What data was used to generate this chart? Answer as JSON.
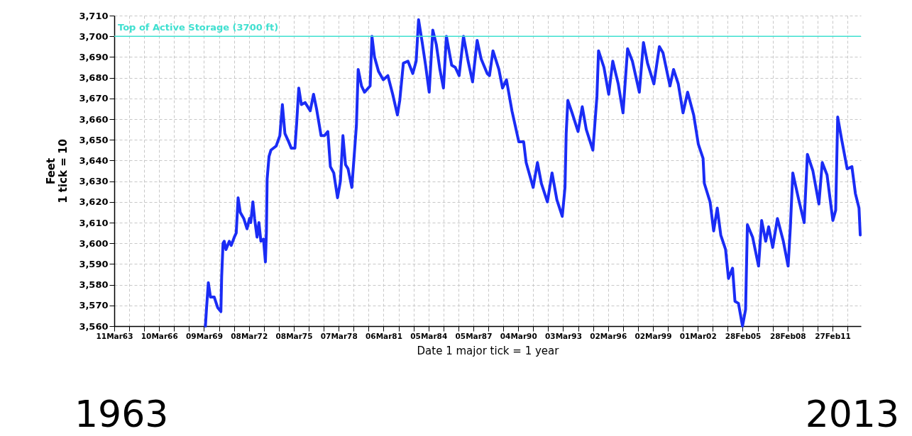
{
  "chart_data": {
    "type": "line",
    "xlabel": "Date  1 major tick = 1 year",
    "ylabel": "Feet\n1 tick = 10",
    "x": [
      "1969-04-11",
      "1969-05-10",
      "1969-06-22",
      "1969-08-13",
      "1969-11-13",
      "1970-02-03",
      "1970-04-24",
      "1970-05-13",
      "1970-06-15",
      "1970-07-14",
      "1970-08-26",
      "1970-11-16",
      "1971-01-01",
      "1971-03-18",
      "1971-05-03",
      "1971-06-18",
      "1971-08-09",
      "1971-11-03",
      "1972-01-21",
      "1972-03-22",
      "1972-04-21",
      "1972-06-12",
      "1972-07-24",
      "1972-09-22",
      "1972-11-06",
      "1972-12-25",
      "1973-02-26",
      "1973-04-14",
      "1973-05-09",
      "1973-05-26",
      "1973-07-11",
      "1973-08-26",
      "1974-01-01",
      "1974-04-01",
      "1974-06-02",
      "1974-08-03",
      "1974-11-03",
      "1975-01-04",
      "1975-04-04",
      "1975-05-16",
      "1975-07-07",
      "1975-09-08",
      "1975-12-08",
      "1976-04-11",
      "1976-07-01",
      "1976-09-12",
      "1977-01-01",
      "1977-03-25",
      "1977-06-15",
      "1977-08-16",
      "1977-11-06",
      "1978-02-06",
      "1978-04-17",
      "1978-06-18",
      "1978-08-20",
      "1978-10-21",
      "1979-01-21",
      "1979-03-22",
      "1979-05-13",
      "1979-06-25",
      "1979-09-15",
      "1979-11-26",
      "1980-04-11",
      "1980-05-26",
      "1980-07-27",
      "1980-11-03",
      "1981-02-26",
      "1981-06-18",
      "1981-10-14",
      "1982-02-06",
      "1982-04-04",
      "1982-07-01",
      "1982-10-21",
      "1983-02-16",
      "1983-05-09",
      "1983-07-07",
      "1983-10-04",
      "1983-12-25",
      "1984-03-22",
      "1984-06-18",
      "1984-09-12",
      "1984-12-08",
      "1985-03-05",
      "1985-05-16",
      "1985-09-22",
      "1985-12-18",
      "1986-03-22",
      "1986-07-07",
      "1986-10-27",
      "1987-02-13",
      "1987-06-05",
      "1987-09-12",
      "1988-02-06",
      "1988-04-01",
      "1988-06-25",
      "1988-11-16",
      "1989-02-13",
      "1989-05-20",
      "1989-10-01",
      "1990-03-18",
      "1990-07-14",
      "1990-09-12",
      "1991-03-02",
      "1991-06-15",
      "1991-09-18",
      "1992-02-13",
      "1992-06-05",
      "1992-10-01",
      "1993-02-09",
      "1993-04-17",
      "1993-05-16",
      "1993-06-25",
      "1993-10-07",
      "1994-03-02",
      "1994-06-12",
      "1994-09-18",
      "1995-02-26",
      "1995-06-05",
      "1995-07-14",
      "1995-11-23",
      "1996-03-18",
      "1996-06-25",
      "1996-11-06",
      "1997-03-02",
      "1997-06-22",
      "1997-10-17",
      "1998-04-04",
      "1998-07-14",
      "1998-10-21",
      "1999-03-25",
      "1999-08-06",
      "1999-11-03",
      "2000-04-21",
      "2000-07-17",
      "2000-11-09",
      "2001-03-05",
      "2001-06-25",
      "2001-11-20",
      "2002-03-12",
      "2002-07-07",
      "2002-08-06",
      "2002-12-25",
      "2003-03-22",
      "2003-06-18",
      "2003-09-12",
      "2004-01-07",
      "2004-03-18",
      "2004-06-25",
      "2004-08-23",
      "2004-11-16",
      "2005-02-23",
      "2005-05-09",
      "2005-06-22",
      "2005-10-27",
      "2006-03-22",
      "2006-06-05",
      "2006-09-12",
      "2006-11-23",
      "2007-03-02",
      "2007-06-25",
      "2007-11-16",
      "2008-03-12",
      "2008-05-06",
      "2008-07-04",
      "2008-11-26",
      "2009-04-07",
      "2009-06-25",
      "2009-11-06",
      "2010-04-01",
      "2010-06-22",
      "2010-10-17",
      "2011-03-08",
      "2011-05-16",
      "2011-07-04",
      "2011-10-01",
      "2012-02-20",
      "2012-06-15",
      "2012-09-08",
      "2012-12-05",
      "2013-01-04"
    ],
    "series": [
      {
        "color": "#1a2cf5",
        "values": [
          3560,
          3569,
          3581,
          3574,
          3574,
          3569,
          3567,
          3584,
          3600,
          3601,
          3597,
          3601,
          3599,
          3603,
          3605,
          3622,
          3615,
          3612,
          3607,
          3612,
          3610,
          3620,
          3612,
          3603,
          3610,
          3601,
          3602,
          3591,
          3606,
          3631,
          3642,
          3645,
          3647,
          3652,
          3667,
          3653,
          3649,
          3646,
          3646,
          3658,
          3675,
          3667,
          3668,
          3664,
          3672,
          3665,
          3652,
          3652,
          3654,
          3637,
          3634,
          3622,
          3630,
          3652,
          3638,
          3636,
          3627,
          3643,
          3657,
          3684,
          3676,
          3673,
          3676,
          3700,
          3690,
          3683,
          3679,
          3681,
          3672,
          3662,
          3669,
          3687,
          3688,
          3682,
          3688,
          3708,
          3697,
          3686,
          3673,
          3703,
          3696,
          3684,
          3675,
          3700,
          3686,
          3685,
          3681,
          3700,
          3688,
          3678,
          3698,
          3689,
          3682,
          3681,
          3693,
          3684,
          3675,
          3679,
          3664,
          3649,
          3649,
          3639,
          3627,
          3639,
          3629,
          3620,
          3634,
          3621,
          3613,
          3627,
          3653,
          3669,
          3663,
          3654,
          3666,
          3655,
          3645,
          3671,
          3693,
          3685,
          3672,
          3688,
          3677,
          3663,
          3694,
          3688,
          3673,
          3697,
          3687,
          3677,
          3695,
          3692,
          3676,
          3684,
          3677,
          3663,
          3673,
          3662,
          3648,
          3641,
          3629,
          3620,
          3606,
          3617,
          3604,
          3597,
          3583,
          3588,
          3572,
          3571,
          3560,
          3568,
          3609,
          3603,
          3589,
          3611,
          3601,
          3608,
          3598,
          3612,
          3601,
          3589,
          3608,
          3634,
          3621,
          3610,
          3643,
          3635,
          3619,
          3639,
          3633,
          3611,
          3616,
          3661,
          3651,
          3636,
          3637,
          3624,
          3617,
          3604
        ]
      }
    ],
    "xlim": [
      "1963-03-11",
      "2013-01-20"
    ],
    "xticks": [
      {
        "value": "1963-03-11",
        "label": "11Mar63"
      },
      {
        "value": "1964-03-10",
        "label": null
      },
      {
        "value": "1965-03-10",
        "label": null
      },
      {
        "value": "1966-03-10",
        "label": "10Mar66"
      },
      {
        "value": "1967-03-10",
        "label": null
      },
      {
        "value": "1968-03-09",
        "label": null
      },
      {
        "value": "1969-03-09",
        "label": "09Mar69"
      },
      {
        "value": "1970-03-09",
        "label": null
      },
      {
        "value": "1971-03-09",
        "label": null
      },
      {
        "value": "1972-03-08",
        "label": "08Mar72"
      },
      {
        "value": "1973-03-08",
        "label": null
      },
      {
        "value": "1974-03-08",
        "label": null
      },
      {
        "value": "1975-03-08",
        "label": "08Mar75"
      },
      {
        "value": "1976-03-07",
        "label": null
      },
      {
        "value": "1977-03-07",
        "label": null
      },
      {
        "value": "1978-03-07",
        "label": "07Mar78"
      },
      {
        "value": "1979-03-07",
        "label": null
      },
      {
        "value": "1980-03-06",
        "label": null
      },
      {
        "value": "1981-03-06",
        "label": "06Mar81"
      },
      {
        "value": "1982-03-06",
        "label": null
      },
      {
        "value": "1983-03-05",
        "label": null
      },
      {
        "value": "1984-03-05",
        "label": "05Mar84"
      },
      {
        "value": "1985-03-05",
        "label": null
      },
      {
        "value": "1986-03-05",
        "label": null
      },
      {
        "value": "1987-03-05",
        "label": "05Mar87"
      },
      {
        "value": "1988-03-04",
        "label": null
      },
      {
        "value": "1989-03-04",
        "label": null
      },
      {
        "value": "1990-03-04",
        "label": "04Mar90"
      },
      {
        "value": "1991-03-04",
        "label": null
      },
      {
        "value": "1992-03-03",
        "label": null
      },
      {
        "value": "1993-03-03",
        "label": "03Mar93"
      },
      {
        "value": "1994-03-03",
        "label": null
      },
      {
        "value": "1995-03-02",
        "label": null
      },
      {
        "value": "1996-03-02",
        "label": "02Mar96"
      },
      {
        "value": "1997-03-02",
        "label": null
      },
      {
        "value": "1998-03-02",
        "label": null
      },
      {
        "value": "1999-03-02",
        "label": "02Mar99"
      },
      {
        "value": "2000-03-01",
        "label": null
      },
      {
        "value": "2001-03-01",
        "label": null
      },
      {
        "value": "2002-03-01",
        "label": "01Mar02"
      },
      {
        "value": "2003-03-01",
        "label": null
      },
      {
        "value": "2004-02-29",
        "label": null
      },
      {
        "value": "2005-02-28",
        "label": "28Feb05"
      },
      {
        "value": "2006-02-28",
        "label": null
      },
      {
        "value": "2007-02-28",
        "label": null
      },
      {
        "value": "2008-02-28",
        "label": "28Feb08"
      },
      {
        "value": "2009-02-28",
        "label": null
      },
      {
        "value": "2010-02-27",
        "label": null
      },
      {
        "value": "2011-02-27",
        "label": "27Feb11"
      },
      {
        "value": "2012-02-27",
        "label": null
      }
    ],
    "ylim": [
      3560,
      3710
    ],
    "yticks": [
      {
        "value": 3560,
        "label": "3,560"
      },
      {
        "value": 3570,
        "label": "3,570"
      },
      {
        "value": 3580,
        "label": "3,580"
      },
      {
        "value": 3590,
        "label": "3,590"
      },
      {
        "value": 3600,
        "label": "3,600"
      },
      {
        "value": 3610,
        "label": "3,610"
      },
      {
        "value": 3620,
        "label": "3,620"
      },
      {
        "value": 3630,
        "label": "3,630"
      },
      {
        "value": 3640,
        "label": "3,640"
      },
      {
        "value": 3650,
        "label": "3,650"
      },
      {
        "value": 3660,
        "label": "3,660"
      },
      {
        "value": 3670,
        "label": "3,670"
      },
      {
        "value": 3680,
        "label": "3,680"
      },
      {
        "value": 3690,
        "label": "3,690"
      },
      {
        "value": 3700,
        "label": "3,700"
      },
      {
        "value": 3710,
        "label": "3,710"
      }
    ],
    "grid": true,
    "ref_lines": [
      {
        "axis": "y",
        "value": 3700,
        "label": "Top of Active Storage (3700 ft)",
        "color": "#40e0d0"
      }
    ],
    "annotations": [
      "1963",
      "2013"
    ]
  }
}
